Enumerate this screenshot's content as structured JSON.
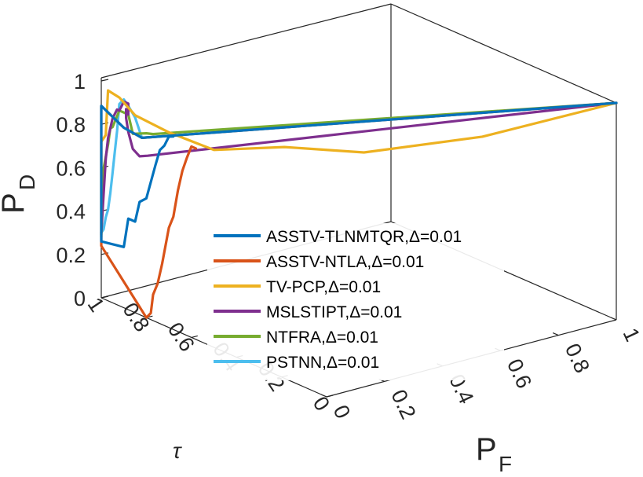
{
  "chart_data": {
    "type": "line",
    "view": "3d",
    "title": "",
    "xlabel": "P",
    "xlabel_sub": "F",
    "ylabel": "τ",
    "zlabel": "P",
    "zlabel_sub": "D",
    "xlim": [
      0,
      1
    ],
    "ylim": [
      0,
      1
    ],
    "zlim": [
      0,
      1
    ],
    "x_ticks": [
      "0",
      "0.2",
      "0.4",
      "0.6",
      "0.8",
      "1"
    ],
    "y_ticks": [
      "0",
      "0.2",
      "0.4",
      "0.6",
      "0.8",
      "1"
    ],
    "z_ticks": [
      "0",
      "0.2",
      "0.4",
      "0.6",
      "0.8",
      "1"
    ],
    "grid": false,
    "legend_position": "center",
    "series": [
      {
        "name": "ASSTV-TLNMTQR,Δ=0.01",
        "color": "#0072BD",
        "points": [
          [
            1,
            0,
            1
          ],
          [
            0,
            0.82,
            0.82
          ],
          [
            0,
            0.9,
            0.83
          ],
          [
            0,
            1,
            0.885
          ],
          [
            0,
            1,
            0.26
          ],
          [
            0,
            0.95,
            0.27
          ],
          [
            0,
            0.9,
            0.28
          ],
          [
            0,
            0.88,
            0.42
          ],
          [
            0,
            0.85,
            0.42
          ],
          [
            0,
            0.83,
            0.52
          ],
          [
            0,
            0.8,
            0.55
          ],
          [
            0,
            0.76,
            0.72
          ],
          [
            0,
            0.74,
            0.8
          ],
          [
            0,
            0.72,
            0.83
          ],
          [
            0,
            0.7,
            0.88
          ],
          [
            0,
            0.68,
            0.89
          ]
        ]
      },
      {
        "name": "ASSTV-NTLA,Δ=0.01",
        "color": "#D95319",
        "points": [
          [
            1,
            0,
            1
          ],
          [
            0,
            0.82,
            0.82
          ],
          [
            0,
            0.9,
            0.83
          ],
          [
            0,
            1,
            0.885
          ],
          [
            0,
            1,
            0.24
          ],
          [
            0,
            0.8,
            0.0
          ],
          [
            0,
            0.78,
            0.03
          ],
          [
            0,
            0.77,
            0.12
          ],
          [
            0,
            0.75,
            0.18
          ],
          [
            0,
            0.73,
            0.28
          ],
          [
            0,
            0.7,
            0.46
          ],
          [
            0,
            0.68,
            0.52
          ],
          [
            0,
            0.66,
            0.65
          ],
          [
            0,
            0.64,
            0.75
          ],
          [
            0,
            0.62,
            0.82
          ],
          [
            0,
            0.6,
            0.88
          ],
          [
            0,
            0.58,
            0.88
          ]
        ]
      },
      {
        "name": "TV-PCP,Δ=0.01",
        "color": "#EDB120",
        "points": [
          [
            1,
            0,
            1
          ],
          [
            0.6,
            0.08,
            0.95
          ],
          [
            0.3,
            0.22,
            0.92
          ],
          [
            0.15,
            0.38,
            0.925
          ],
          [
            0,
            0.5,
            0.91
          ],
          [
            0,
            0.7,
            0.9
          ],
          [
            0,
            0.85,
            0.91
          ],
          [
            0,
            0.92,
            0.96
          ],
          [
            0,
            0.97,
            0.97
          ],
          [
            0,
            0.98,
            0.76
          ],
          [
            0,
            1,
            0.72
          ],
          [
            0,
            1,
            0.28
          ]
        ]
      },
      {
        "name": "MSLSTIPT,Δ=0.01",
        "color": "#7E2F8E",
        "points": [
          [
            1,
            0,
            1
          ],
          [
            0.02,
            0.82,
            0.73
          ],
          [
            0,
            0.83,
            0.73
          ],
          [
            0,
            0.86,
            0.75
          ],
          [
            0,
            0.88,
            0.82
          ],
          [
            0,
            0.89,
            0.88
          ],
          [
            0,
            0.89,
            0.92
          ],
          [
            0,
            0.88,
            0.9
          ],
          [
            0,
            0.88,
            0.95
          ],
          [
            0,
            0.9,
            0.95
          ],
          [
            0,
            0.92,
            0.9
          ],
          [
            0,
            0.93,
            0.9
          ],
          [
            0,
            0.95,
            0.85
          ],
          [
            0,
            0.96,
            0.8
          ],
          [
            0,
            0.97,
            0.75
          ],
          [
            0,
            0.98,
            0.65
          ],
          [
            0,
            1,
            0.3
          ]
        ]
      },
      {
        "name": "NTFRA,Δ=0.01",
        "color": "#77AC30",
        "points": [
          [
            1,
            0,
            1
          ],
          [
            0,
            0.77,
            0.86
          ],
          [
            0,
            0.8,
            0.85
          ],
          [
            0,
            0.82,
            0.84
          ],
          [
            0,
            0.84,
            0.83
          ],
          [
            0,
            0.86,
            0.82
          ],
          [
            0,
            0.88,
            0.9
          ],
          [
            0,
            0.9,
            0.9
          ],
          [
            0,
            0.92,
            0.9
          ],
          [
            0,
            0.95,
            0.81
          ],
          [
            0,
            0.96,
            0.8
          ],
          [
            0,
            0.97,
            0.72
          ],
          [
            0,
            0.98,
            0.66
          ],
          [
            0,
            0.99,
            0.6
          ],
          [
            0,
            1,
            0.29
          ]
        ]
      },
      {
        "name": "PSTNN,Δ=0.01",
        "color": "#4DBEEE",
        "points": [
          [
            1,
            0,
            1
          ],
          [
            0,
            0.82,
            0.82
          ],
          [
            0,
            0.85,
            0.9
          ],
          [
            0,
            0.88,
            0.94
          ],
          [
            0,
            0.9,
            0.96
          ],
          [
            0,
            0.92,
            0.93
          ],
          [
            0,
            0.93,
            0.8
          ],
          [
            0,
            0.94,
            0.7
          ],
          [
            0,
            0.95,
            0.6
          ],
          [
            0,
            0.96,
            0.5
          ],
          [
            0,
            0.97,
            0.42
          ],
          [
            0,
            0.98,
            0.38
          ],
          [
            0,
            0.99,
            0.32
          ],
          [
            0,
            1,
            0.3
          ]
        ]
      }
    ]
  }
}
